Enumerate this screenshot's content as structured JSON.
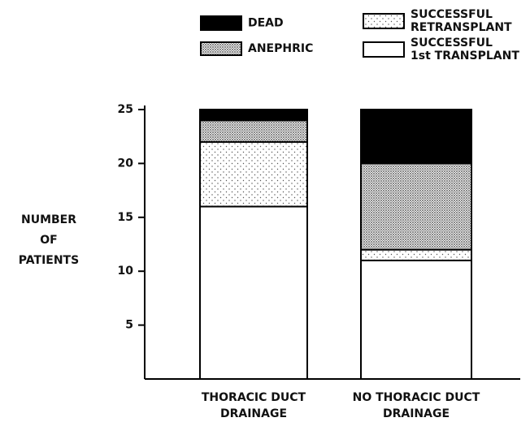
{
  "chart_data": {
    "type": "stacked_bar",
    "y_label": [
      "NUMBER",
      "OF",
      "PATIENTS"
    ],
    "categories": [
      [
        "THORACIC DUCT",
        "DRAINAGE"
      ],
      [
        "NO THORACIC DUCT",
        "DRAINAGE"
      ]
    ],
    "series": [
      {
        "name": [
          "SUCCESSFUL",
          "1st TRANSPLANT"
        ],
        "color": "#ffffff",
        "fill": "plain",
        "values": [
          16,
          11
        ]
      },
      {
        "name": [
          "SUCCESSFUL",
          "RETRANSPLANT"
        ],
        "color": "#ffffff",
        "fill": "sparse-dots",
        "values": [
          6,
          1
        ]
      },
      {
        "name": [
          "ANEPHRIC"
        ],
        "color": "#ffffff",
        "fill": "dense-dots",
        "values": [
          2,
          8
        ]
      },
      {
        "name": [
          "DEAD"
        ],
        "color": "#000000",
        "fill": "plain",
        "values": [
          1,
          5
        ]
      }
    ],
    "ylim": [
      0,
      25
    ],
    "yticks": [
      5,
      10,
      15,
      20,
      25
    ]
  }
}
